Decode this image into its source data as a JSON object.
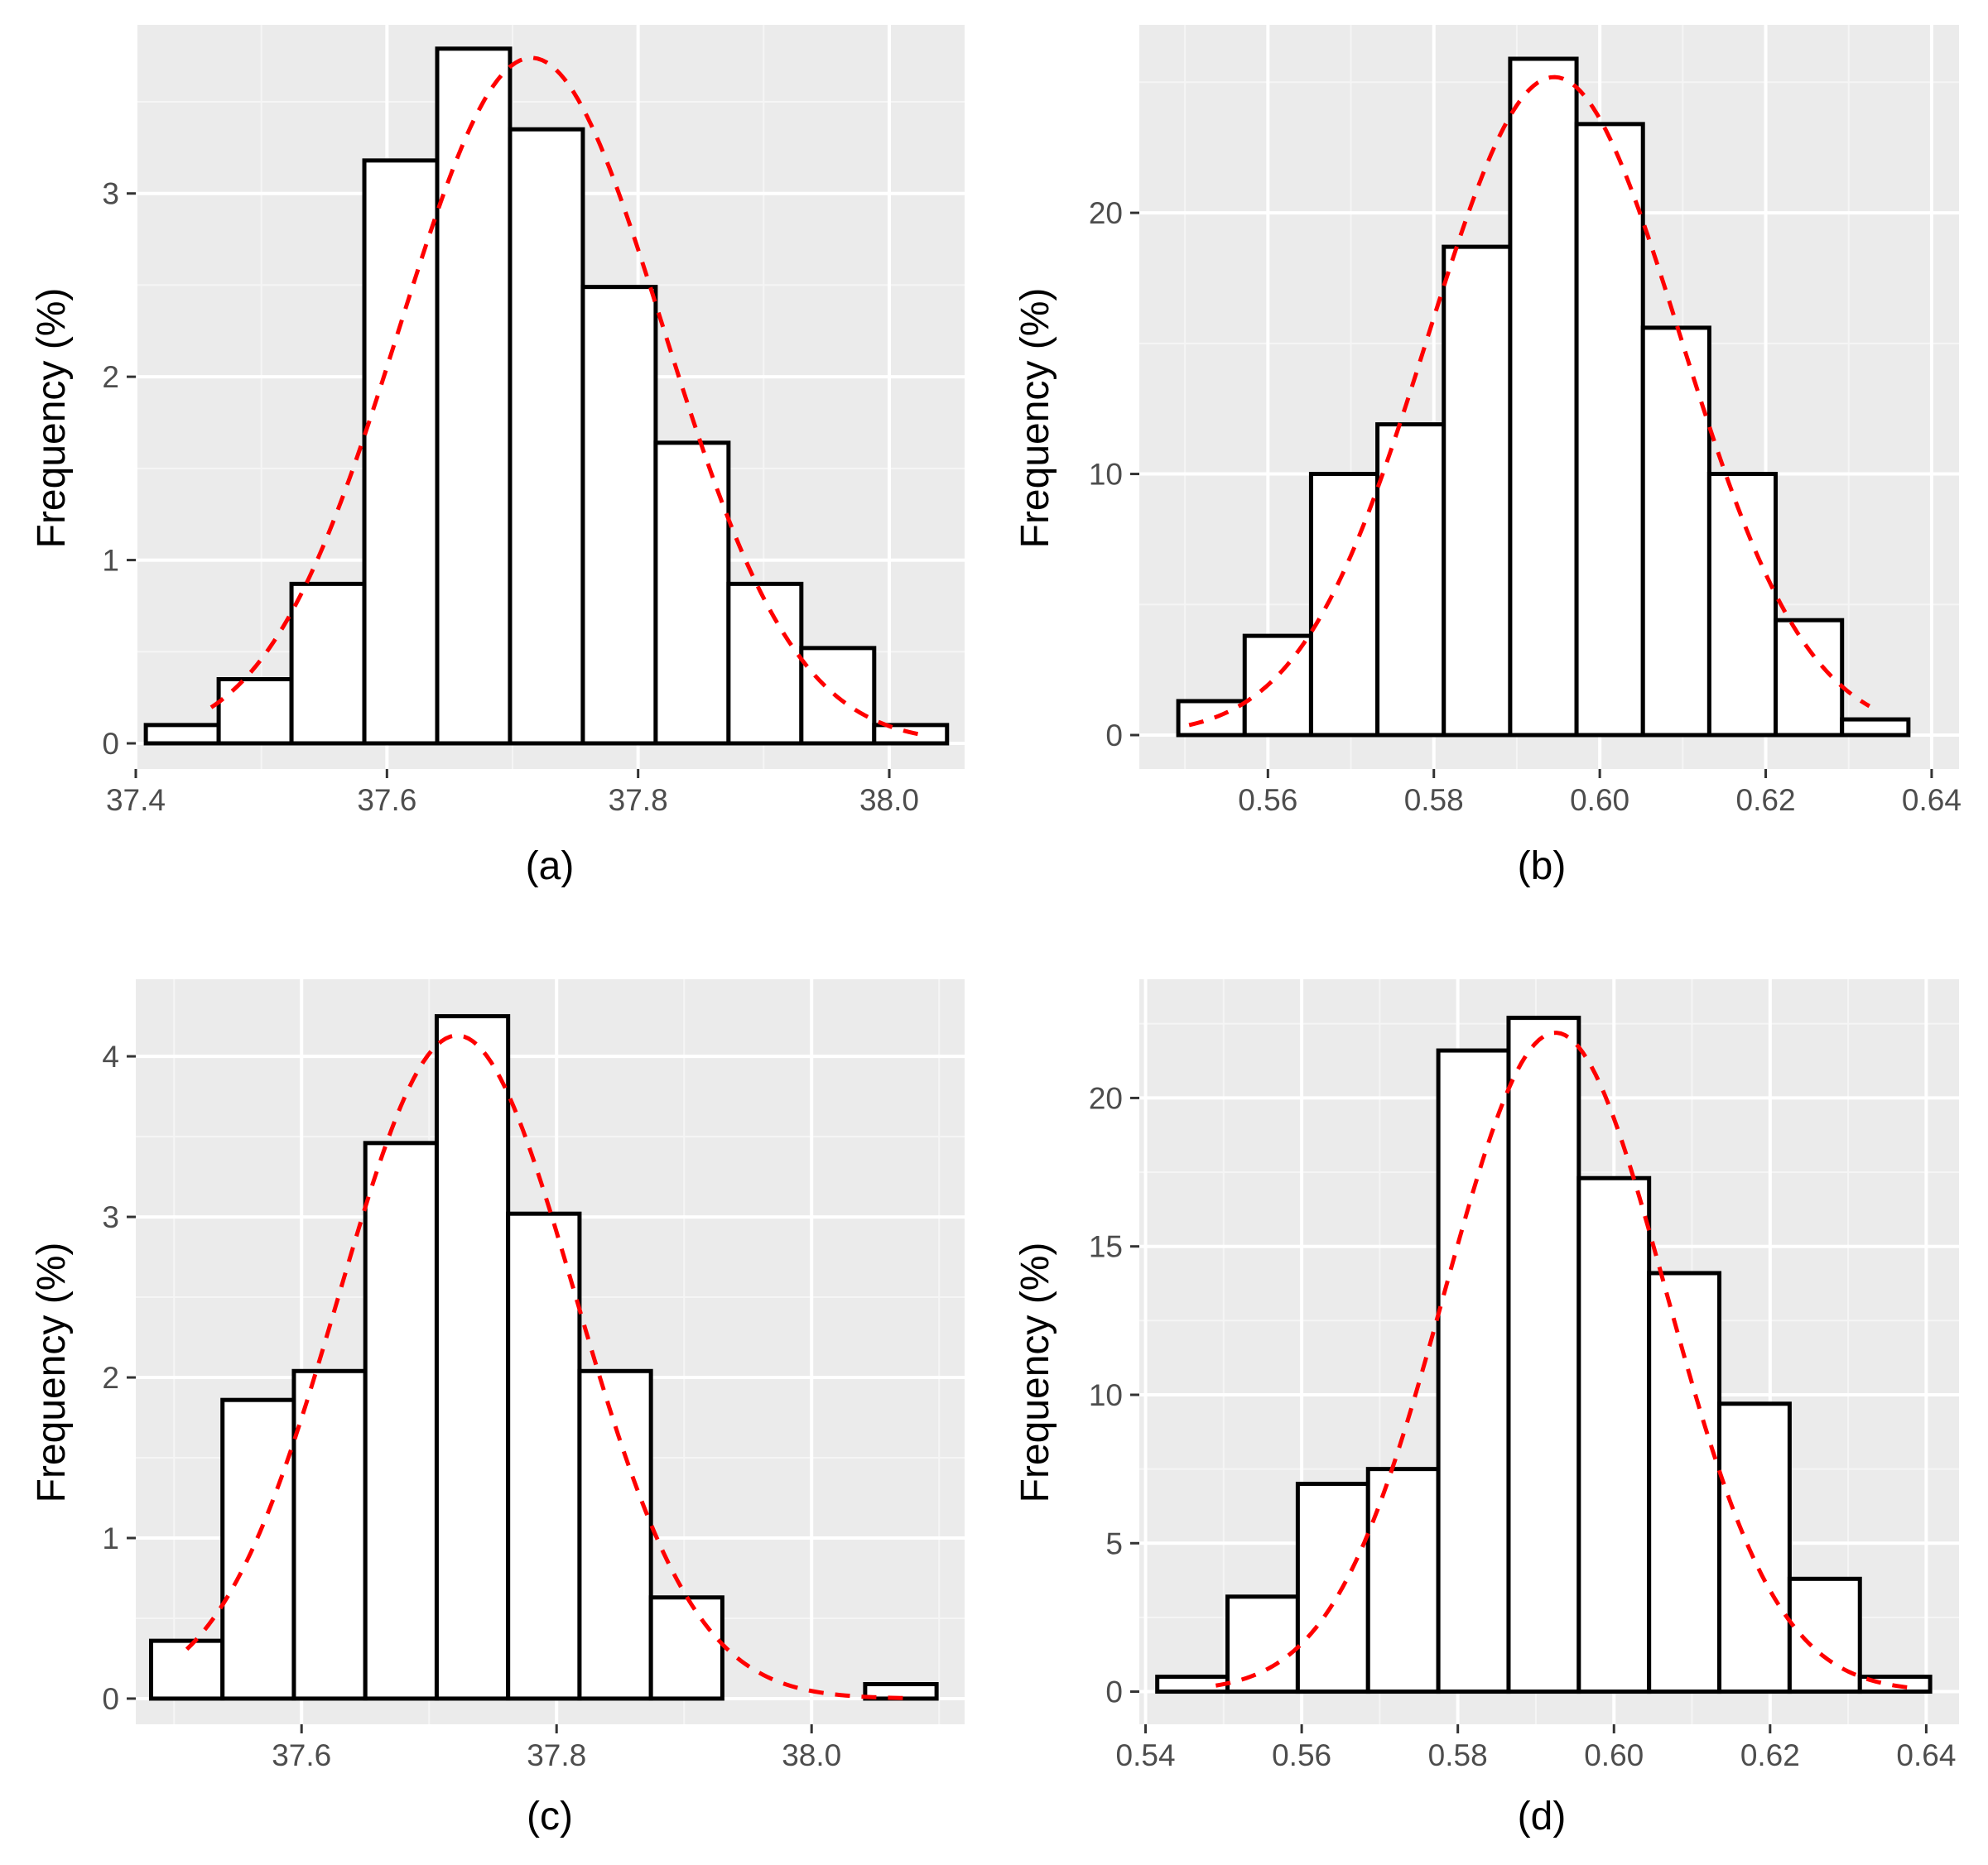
{
  "figure": {
    "colors": {
      "panel_background": "#ebebeb",
      "grid_major": "#ffffff",
      "grid_minor": "#f5f5f5",
      "bar_fill": "#ffffff",
      "bar_outline": "#000000",
      "density_curve": "#ff0000",
      "tick_text": "#4d4d4d",
      "tick_mark": "#333333"
    }
  },
  "chart_data": [
    {
      "id": "a",
      "type": "bar",
      "caption": "(a)",
      "ylabel": "Frequency (%)",
      "xlabel": "",
      "xlim": [
        37.4,
        38.06
      ],
      "ylim": [
        -0.14,
        3.92
      ],
      "xticks": [
        37.4,
        37.6,
        37.8,
        38.0
      ],
      "xtick_labels": [
        "37.4",
        "37.6",
        "37.8",
        "38.0"
      ],
      "yticks": [
        0,
        1,
        2,
        3
      ],
      "ytick_labels": [
        "0",
        "1",
        "2",
        "3"
      ],
      "grid": true,
      "bins": {
        "edges": [
          37.408,
          37.466,
          37.524,
          37.582,
          37.64,
          37.698,
          37.756,
          37.814,
          37.872,
          37.93,
          37.988,
          38.046
        ],
        "values": [
          0.1,
          0.35,
          0.87,
          3.18,
          3.79,
          3.35,
          2.49,
          1.64,
          0.87,
          0.52,
          0.1
        ]
      },
      "curve": {
        "type": "normal_density",
        "peak": 3.74,
        "mean": 37.715,
        "sd": 0.105,
        "x_range": [
          37.46,
          38.03
        ]
      }
    },
    {
      "id": "b",
      "type": "bar",
      "caption": "(b)",
      "ylabel": "Frequency (%)",
      "xlabel": "",
      "xlim": [
        0.5445,
        0.6433
      ],
      "ylim": [
        -1.3,
        27.2
      ],
      "xticks": [
        0.56,
        0.58,
        0.6,
        0.62,
        0.64
      ],
      "xtick_labels": [
        "0.56",
        "0.58",
        "0.60",
        "0.62",
        "0.64"
      ],
      "yticks": [
        0,
        10,
        20
      ],
      "ytick_labels": [
        "0",
        "10",
        "20"
      ],
      "grid": true,
      "bins": {
        "edges": [
          0.5492,
          0.5572,
          0.5652,
          0.5732,
          0.5812,
          0.5892,
          0.5972,
          0.6052,
          0.6132,
          0.6212,
          0.6292,
          0.6372
        ],
        "values": [
          1.3,
          3.8,
          10.0,
          11.9,
          18.7,
          25.9,
          23.4,
          15.6,
          10.0,
          4.4,
          0.6
        ]
      },
      "curve": {
        "type": "normal_density",
        "peak": 25.2,
        "mean": 0.5945,
        "sd": 0.0152,
        "x_range": [
          0.5505,
          0.6325
        ]
      }
    },
    {
      "id": "c",
      "type": "bar",
      "caption": "(c)",
      "ylabel": "Frequency (%)",
      "xlabel": "",
      "xlim": [
        37.47,
        38.12
      ],
      "ylim": [
        -0.16,
        4.48
      ],
      "xticks": [
        37.6,
        37.8,
        38.0
      ],
      "xtick_labels": [
        "37.6",
        "37.8",
        "38.0"
      ],
      "yticks": [
        0,
        1,
        2,
        3,
        4
      ],
      "ytick_labels": [
        "0",
        "1",
        "2",
        "3",
        "4"
      ],
      "grid": true,
      "bins": {
        "edges": [
          37.482,
          37.538,
          37.594,
          37.65,
          37.706,
          37.762,
          37.818,
          37.874,
          37.93,
          37.986,
          38.042,
          38.098
        ],
        "values": [
          0.36,
          1.86,
          2.04,
          3.46,
          4.25,
          3.02,
          2.04,
          0.63,
          0.0,
          0.0,
          0.09
        ]
      },
      "curve": {
        "type": "normal_density",
        "peak": 4.13,
        "mean": 37.722,
        "sd": 0.093,
        "x_range": [
          37.51,
          38.08
        ]
      }
    },
    {
      "id": "d",
      "type": "bar",
      "caption": "(d)",
      "ylabel": "Frequency (%)",
      "xlabel": "",
      "xlim": [
        0.5392,
        0.6442
      ],
      "ylim": [
        -1.1,
        24.0
      ],
      "xticks": [
        0.54,
        0.56,
        0.58,
        0.6,
        0.62,
        0.64
      ],
      "xtick_labels": [
        "0.54",
        "0.56",
        "0.58",
        "0.60",
        "0.62",
        "0.64"
      ],
      "yticks": [
        0,
        5,
        10,
        15,
        20
      ],
      "ytick_labels": [
        "0",
        "5",
        "10",
        "15",
        "20"
      ],
      "grid": true,
      "bins": {
        "edges": [
          0.5415,
          0.5505,
          0.5595,
          0.5685,
          0.5775,
          0.5865,
          0.5955,
          0.6045,
          0.6135,
          0.6225,
          0.6315,
          0.6405
        ],
        "values": [
          0.5,
          3.2,
          7.0,
          7.5,
          21.6,
          22.7,
          17.3,
          14.1,
          9.7,
          3.8,
          0.5
        ]
      },
      "curve": {
        "type": "normal_density",
        "peak": 22.2,
        "mean": 0.5925,
        "sd": 0.0142,
        "x_range": [
          0.549,
          0.6385
        ]
      }
    }
  ]
}
